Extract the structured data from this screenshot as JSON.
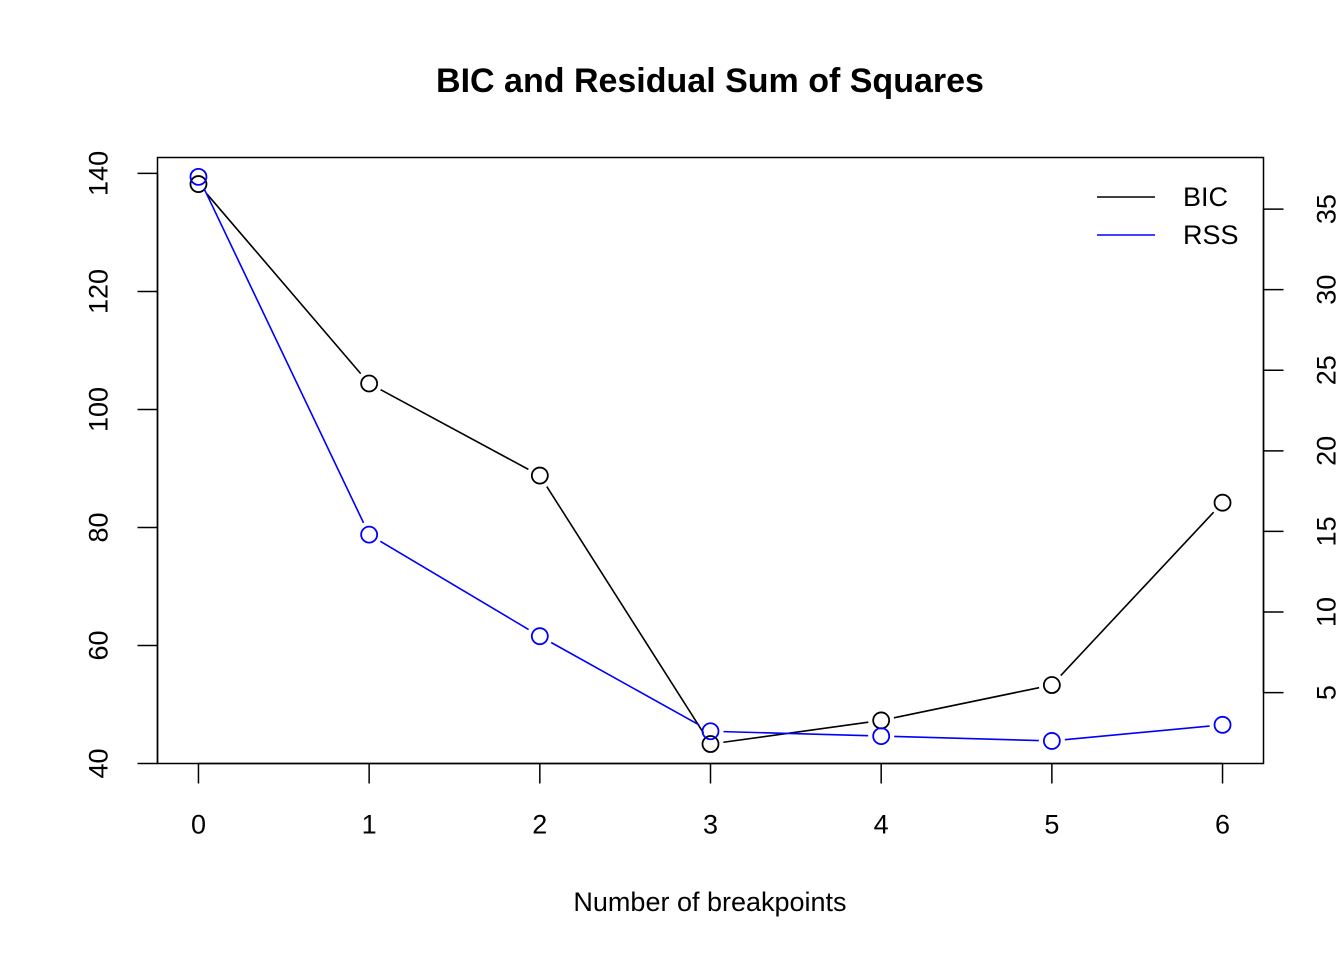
{
  "chart_data": {
    "type": "line",
    "title": "BIC and Residual Sum of Squares",
    "xlabel": "Number of breakpoints",
    "ylabel": "",
    "y2label": "",
    "x": [
      0,
      1,
      2,
      3,
      4,
      5,
      6
    ],
    "xticks": [
      "0",
      "1",
      "2",
      "3",
      "4",
      "5",
      "6"
    ],
    "xlim": [
      -0.24,
      6.24
    ],
    "ylim": [
      40,
      142.7
    ],
    "y2lim": [
      0.6,
      38.2
    ],
    "yticks": [
      40,
      60,
      80,
      100,
      120,
      140
    ],
    "y2ticks": [
      5,
      10,
      15,
      20,
      25,
      30,
      35
    ],
    "grid": false,
    "legend_position": "top-right",
    "series": [
      {
        "name": "BIC",
        "axis": "left",
        "color": "#000000",
        "values": [
          138.2,
          104.4,
          88.8,
          43.3,
          47.3,
          53.3,
          84.2
        ]
      },
      {
        "name": "RSS",
        "axis": "right",
        "color": "#0000ff",
        "values": [
          37.0,
          14.8,
          8.5,
          2.6,
          2.3,
          2.0,
          3.0
        ]
      }
    ]
  }
}
